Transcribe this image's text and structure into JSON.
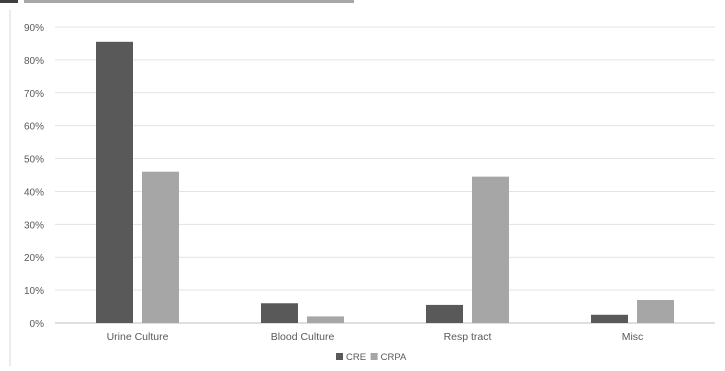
{
  "chart_data": {
    "type": "bar",
    "categories": [
      "Urine Culture",
      "Blood Culture",
      "Resp tract",
      "Misc"
    ],
    "series": [
      {
        "name": "CRE",
        "values": [
          85.5,
          6.0,
          5.5,
          2.5
        ],
        "color": "#595959"
      },
      {
        "name": "CRPA",
        "values": [
          46.0,
          2.0,
          44.5,
          7.0
        ],
        "color": "#a6a6a6"
      }
    ],
    "ylim": [
      0,
      90
    ],
    "yticks": [
      "0%",
      "10%",
      "20%",
      "30%",
      "40%",
      "50%",
      "60%",
      "70%",
      "80%",
      "90%"
    ],
    "yaxis_format": "percent",
    "grid": true,
    "legend_position": "bottom-center",
    "title": "",
    "xlabel": "",
    "ylabel": ""
  }
}
